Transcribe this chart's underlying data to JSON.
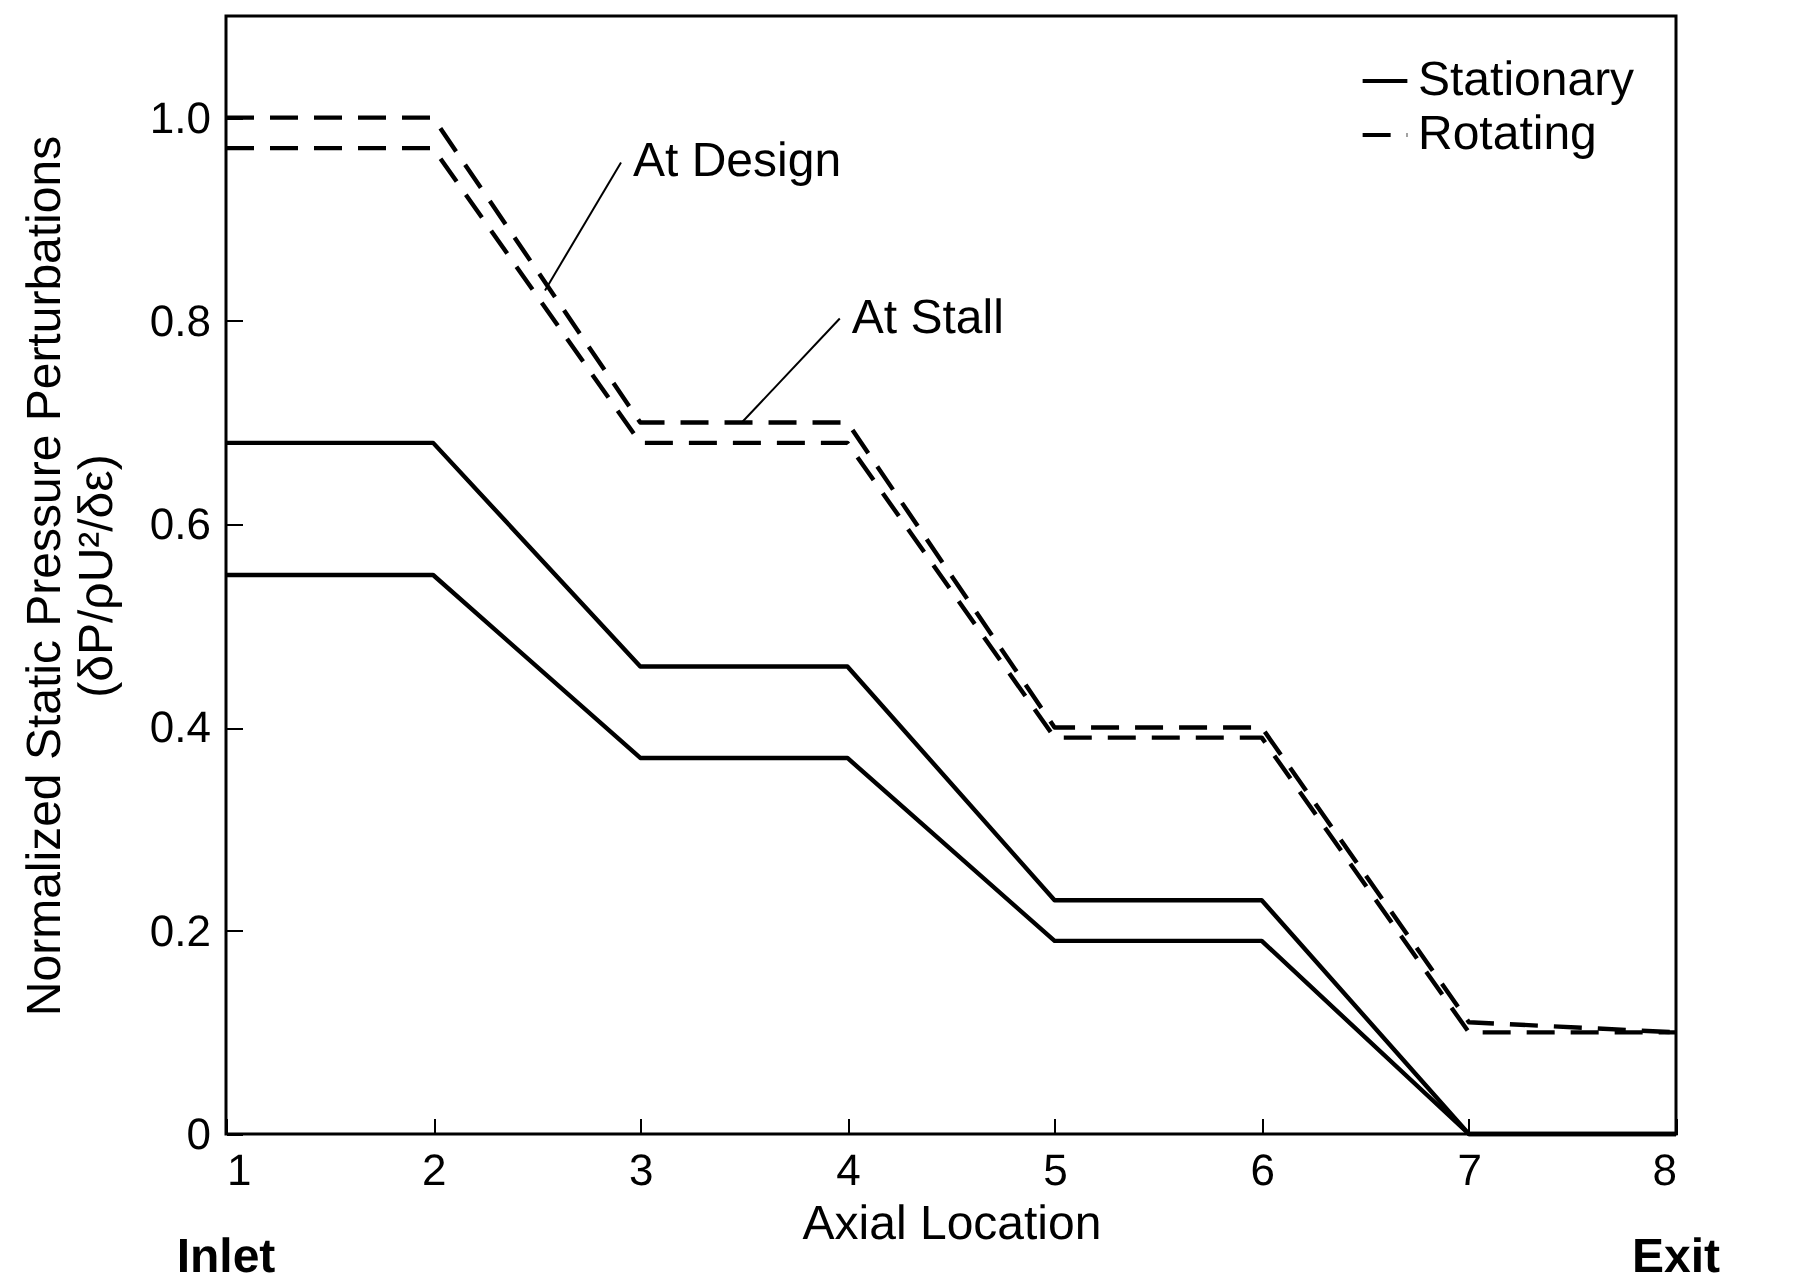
{
  "chart_data": {
    "type": "line",
    "xlabel": "Axial Location",
    "ylabel": "Normalized Static Pressure Perturbations\n(δP/ρU²/δε)",
    "x": [
      1,
      2,
      3,
      4,
      5,
      6,
      7,
      8
    ],
    "series": [
      {
        "name": "Stationary",
        "color": "#000000",
        "line_style": "solid",
        "values": [
          0.55,
          0.55,
          0.37,
          0.37,
          0.19,
          0.19,
          0,
          0
        ]
      },
      {
        "color": "#000000",
        "line_style": "solid",
        "values": [
          0.68,
          0.68,
          0.46,
          0.46,
          0.23,
          0.23,
          0,
          0
        ]
      },
      {
        "name": "Rotating",
        "color": "#000000",
        "line_style": "dashed",
        "values": [
          0.97,
          0.97,
          0.68,
          0.68,
          0.39,
          0.39,
          0.1,
          0.1
        ]
      },
      {
        "color": "#000000",
        "line_style": "dashed",
        "values": [
          1.0,
          1.0,
          0.7,
          0.7,
          0.4,
          0.4,
          0.11,
          0.1
        ]
      }
    ],
    "xlim": [
      1,
      8
    ],
    "xticks": [
      1,
      2,
      3,
      4,
      5,
      6,
      7,
      8
    ],
    "ylim": [
      0,
      1.1
    ],
    "yticks": [
      {
        "value": 0,
        "label": "0"
      },
      0.2,
      0.4,
      0.6,
      0.8,
      {
        "value": 1,
        "label": "1.0"
      }
    ],
    "grid": false,
    "legend": "top right",
    "marker": "none",
    "annotations": [
      {
        "text": "At Design",
        "x": 2.54,
        "y": 0.83
      },
      {
        "text": "At Stall",
        "x": 3.49,
        "y": 0.7
      },
      "Inlet",
      "Exit"
    ]
  }
}
